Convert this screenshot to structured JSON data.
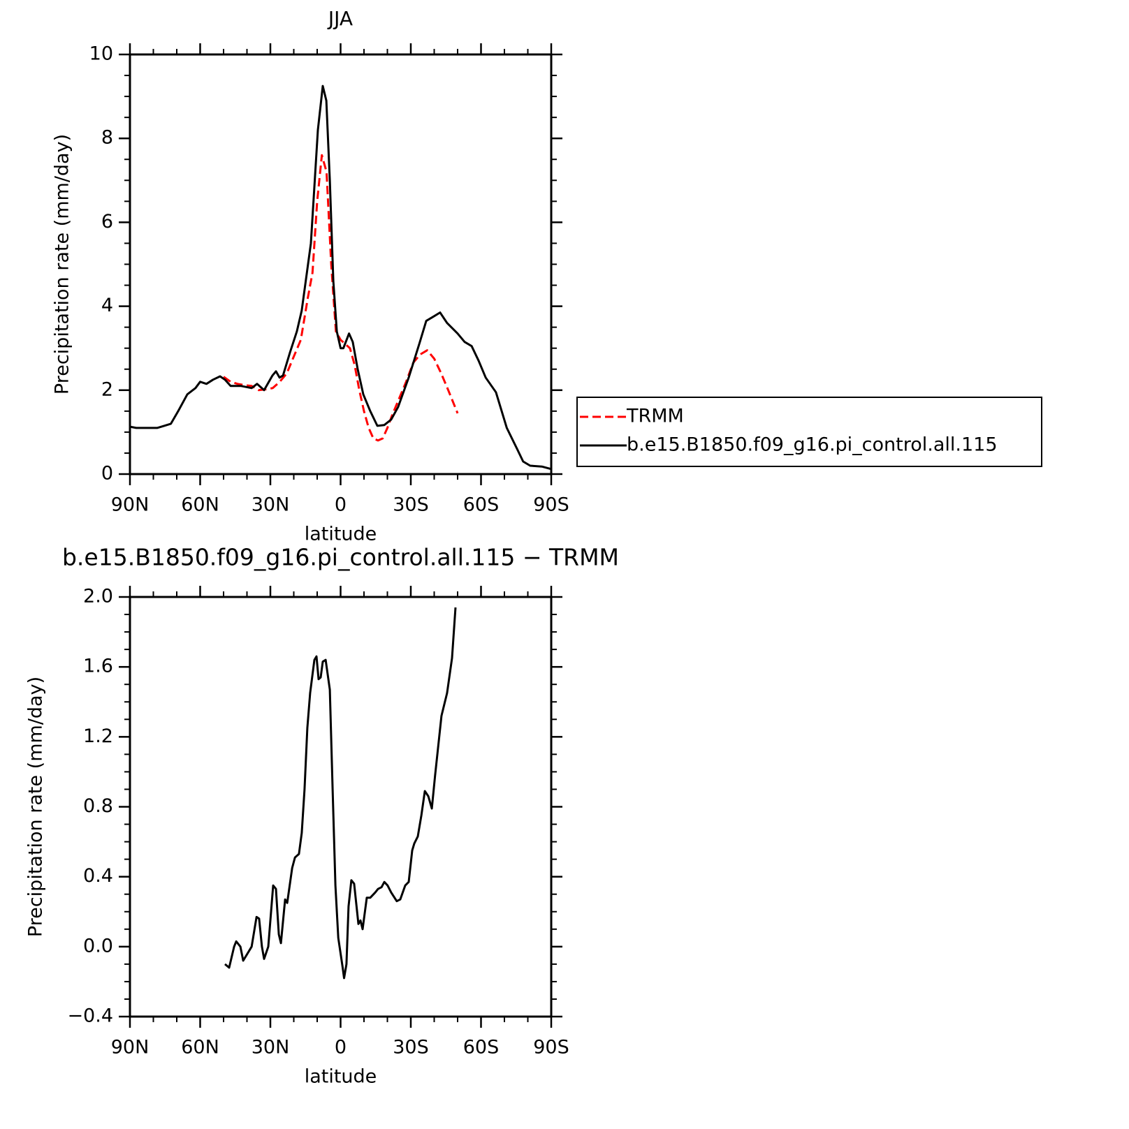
{
  "chart_data": [
    {
      "type": "line",
      "title": "JJA",
      "xlabel": "latitude",
      "ylabel": "Precipitation rate (mm/day)",
      "xlim": [
        90,
        -90
      ],
      "xticks": [
        {
          "value": 90,
          "label": "90N"
        },
        {
          "value": 60,
          "label": "60N"
        },
        {
          "value": 30,
          "label": "30N"
        },
        0,
        {
          "value": -30,
          "label": "30S"
        },
        {
          "value": -60,
          "label": "60S"
        },
        {
          "value": -90,
          "label": "90S"
        }
      ],
      "xminorticks": [
        80,
        70,
        50,
        40,
        20,
        10,
        -10,
        -20,
        -40,
        -50,
        -70,
        -80
      ],
      "ylim": [
        0,
        10
      ],
      "yticks": [
        0,
        2,
        4,
        6,
        8,
        10
      ],
      "yminorticks": [
        0.5,
        1,
        1.5,
        2.5,
        3,
        3.5,
        4.5,
        5,
        5.5,
        6.5,
        7,
        7.5,
        8.5,
        9,
        9.5
      ],
      "legend": "right",
      "series": [
        {
          "name": "TRMM",
          "color": "#ff0000",
          "linestyle": "dashed",
          "x": [
            50,
            47,
            44,
            41,
            38,
            35,
            32,
            29,
            26,
            23,
            20,
            17,
            14,
            12,
            10,
            8,
            6,
            4,
            2,
            0,
            -2,
            -4,
            -6,
            -8,
            -10,
            -12,
            -14,
            -16,
            -18,
            -20,
            -22,
            -25,
            -28,
            -31,
            -34,
            -37,
            -40,
            -43,
            -46,
            -50
          ],
          "values": [
            2.32,
            2.2,
            2.15,
            2.12,
            2.1,
            2.0,
            2.02,
            2.05,
            2.2,
            2.4,
            2.8,
            3.2,
            4.2,
            4.8,
            6.5,
            7.6,
            7.2,
            5.0,
            3.4,
            3.2,
            3.1,
            3.0,
            2.6,
            2.0,
            1.5,
            1.1,
            0.85,
            0.8,
            0.85,
            1.1,
            1.4,
            1.8,
            2.2,
            2.65,
            2.85,
            2.95,
            2.75,
            2.4,
            2.0,
            1.45
          ]
        },
        {
          "name": "b.e15.B1850.f09_g16.pi_control.all.115",
          "color": "#000000",
          "linestyle": "solid",
          "x": [
            90,
            87.3,
            82.8,
            78.4,
            75.4,
            72.5,
            69.4,
            65.5,
            62,
            60,
            57.3,
            54.5,
            51.5,
            49.4,
            47,
            42.5,
            38,
            35.7,
            32.7,
            29.1,
            27.6,
            26.1,
            24.6,
            21.6,
            18.7,
            16.6,
            12.7,
            9.7,
            7.6,
            6.1,
            4.6,
            3.1,
            1.6,
            0,
            -1.2,
            -3.6,
            -5.2,
            -7.3,
            -9.7,
            -12.7,
            -15.7,
            -18.7,
            -21.6,
            -24.6,
            -29.1,
            -33.6,
            -36.6,
            -39.6,
            -42.5,
            -45.5,
            -50,
            -53,
            -56,
            -59,
            -62,
            -66.4,
            -71,
            -75.4,
            -78,
            -81,
            -86,
            -90
          ],
          "values": [
            1.13,
            1.1,
            1.1,
            1.1,
            1.15,
            1.2,
            1.5,
            1.9,
            2.05,
            2.2,
            2.15,
            2.25,
            2.33,
            2.25,
            2.1,
            2.1,
            2.05,
            2.15,
            2.0,
            2.35,
            2.45,
            2.3,
            2.35,
            2.9,
            3.4,
            3.9,
            5.5,
            8.2,
            9.25,
            8.9,
            7.0,
            4.6,
            3.4,
            3.0,
            3.0,
            3.35,
            3.15,
            2.5,
            1.9,
            1.5,
            1.15,
            1.17,
            1.3,
            1.6,
            2.3,
            3.1,
            3.65,
            3.75,
            3.85,
            3.6,
            3.35,
            3.15,
            3.05,
            2.7,
            2.3,
            1.95,
            1.1,
            0.6,
            0.3,
            0.2,
            0.18,
            0.12
          ]
        }
      ]
    },
    {
      "type": "line",
      "title": "b.e15.B1850.f09_g16.pi_control.all.115 − TRMM",
      "xlabel": "latitude",
      "ylabel": "Precipitation rate (mm/day)",
      "xlim": [
        90,
        -90
      ],
      "xticks": [
        {
          "value": 90,
          "label": "90N"
        },
        {
          "value": 60,
          "label": "60N"
        },
        {
          "value": 30,
          "label": "30N"
        },
        0,
        {
          "value": -30,
          "label": "30S"
        },
        {
          "value": -60,
          "label": "60S"
        },
        {
          "value": -90,
          "label": "90S"
        }
      ],
      "xminorticks": [
        80,
        70,
        50,
        40,
        20,
        10,
        -10,
        -20,
        -40,
        -50,
        -70,
        -80
      ],
      "ylim": [
        -0.4,
        2.0
      ],
      "yticks": [
        {
          "value": -0.4,
          "label": "−0.4"
        },
        {
          "value": 0,
          "label": "0.0"
        },
        {
          "value": 0.4,
          "label": "0.4"
        },
        {
          "value": 0.8,
          "label": "0.8"
        },
        {
          "value": 1.2,
          "label": "1.2"
        },
        {
          "value": 1.6,
          "label": "1.6"
        },
        {
          "value": 2.0,
          "label": "2.0"
        }
      ],
      "yminorticks": [
        -0.3,
        -0.2,
        -0.1,
        0.1,
        0.2,
        0.3,
        0.5,
        0.6,
        0.7,
        0.9,
        1.0,
        1.1,
        1.3,
        1.4,
        1.5,
        1.7,
        1.8,
        1.9
      ],
      "series": [
        {
          "color": "#000000",
          "linestyle": "solid",
          "x": [
            49.4,
            47.6,
            45.5,
            44.6,
            42.8,
            41.6,
            38,
            35.9,
            34.8,
            33.6,
            32.7,
            30.9,
            28.8,
            27.6,
            26.4,
            25.5,
            23.7,
            22.8,
            20.7,
            19.5,
            17.8,
            16.6,
            15.4,
            14.2,
            13,
            11.2,
            10.3,
            9.4,
            8.5,
            7.6,
            6.4,
            4.6,
            3.4,
            2.2,
            1,
            -0.9,
            -1.5,
            -2.5,
            -3.4,
            -4.6,
            -5.8,
            -7.6,
            -8.5,
            -9.4,
            -11.2,
            -12.7,
            -14.8,
            -16,
            -17.5,
            -18.7,
            -20.1,
            -21.6,
            -24,
            -25.5,
            -27.6,
            -29.1,
            -30.6,
            -31.5,
            -33,
            -34.5,
            -36,
            -37.5,
            -39,
            -40.4,
            -43.1,
            -45.5,
            -47.6,
            -49.1
          ],
          "values": [
            -0.1,
            -0.12,
            0.0,
            0.03,
            0.0,
            -0.08,
            0.0,
            0.17,
            0.16,
            0.0,
            -0.07,
            0.0,
            0.35,
            0.33,
            0.07,
            0.02,
            0.27,
            0.25,
            0.45,
            0.51,
            0.53,
            0.65,
            0.9,
            1.25,
            1.45,
            1.64,
            1.66,
            1.53,
            1.54,
            1.63,
            1.64,
            1.47,
            0.9,
            0.35,
            0.05,
            -0.12,
            -0.18,
            -0.1,
            0.23,
            0.38,
            0.36,
            0.13,
            0.15,
            0.1,
            0.28,
            0.28,
            0.31,
            0.33,
            0.34,
            0.37,
            0.35,
            0.31,
            0.26,
            0.27,
            0.35,
            0.37,
            0.55,
            0.59,
            0.63,
            0.75,
            0.89,
            0.86,
            0.79,
            0.98,
            1.32,
            1.45,
            1.65,
            1.94
          ]
        }
      ]
    }
  ]
}
